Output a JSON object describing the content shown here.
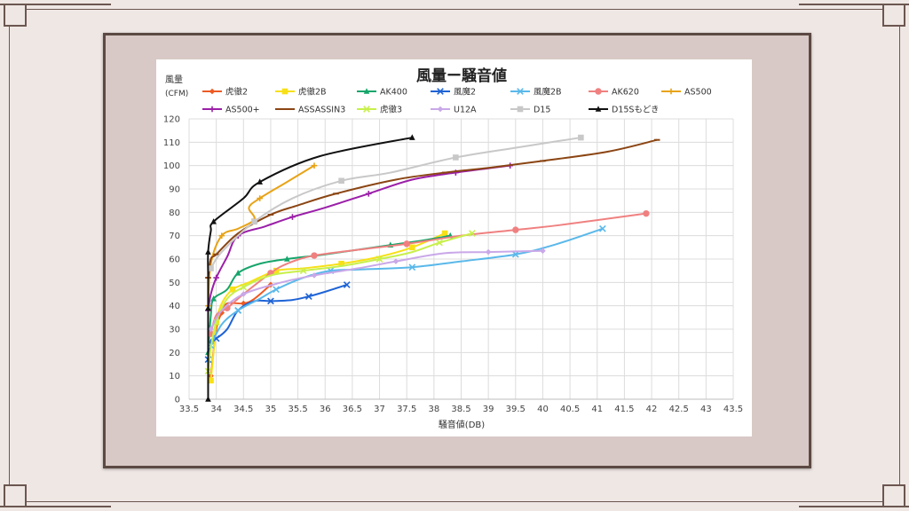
{
  "chart_data": {
    "type": "line",
    "title": "風量ー騒音値",
    "ylabel_line1": "風量",
    "ylabel_line2": "(CFM)",
    "xlabel": "騒音値(DB)",
    "xlim": [
      33.5,
      43.5
    ],
    "ylim": [
      0,
      120
    ],
    "x_ticks": [
      "33.5",
      "34",
      "34.5",
      "35",
      "35.5",
      "36",
      "36.5",
      "37",
      "37.5",
      "38",
      "38.5",
      "39",
      "39.5",
      "40",
      "40.5",
      "41",
      "41.5",
      "42",
      "42.5",
      "43",
      "43.5"
    ],
    "y_ticks": [
      "0",
      "10",
      "20",
      "30",
      "40",
      "50",
      "60",
      "70",
      "80",
      "90",
      "100",
      "110",
      "120"
    ],
    "grid": true,
    "legend_position": "top",
    "series": [
      {
        "name": "虎徹2",
        "color": "#ee5a24",
        "marker": "diamond",
        "points": [
          [
            33.9,
            10
          ],
          [
            34.0,
            30
          ],
          [
            34.1,
            37
          ],
          [
            34.2,
            41
          ],
          [
            34.5,
            41
          ],
          [
            34.7,
            43
          ],
          [
            35.0,
            49
          ]
        ]
      },
      {
        "name": "虎徹2B",
        "color": "#f7e017",
        "marker": "square",
        "points": [
          [
            33.9,
            8
          ],
          [
            33.95,
            20
          ],
          [
            34.0,
            33
          ],
          [
            34.1,
            41
          ],
          [
            34.3,
            47
          ],
          [
            34.6,
            50
          ],
          [
            35.1,
            55
          ],
          [
            35.6,
            56
          ],
          [
            36.3,
            58
          ],
          [
            37.0,
            61
          ],
          [
            37.6,
            65
          ],
          [
            38.2,
            71
          ]
        ]
      },
      {
        "name": "AK400",
        "color": "#16a56b",
        "marker": "triangle",
        "points": [
          [
            33.85,
            20
          ],
          [
            33.9,
            36
          ],
          [
            33.95,
            43
          ],
          [
            34.2,
            47
          ],
          [
            34.4,
            54
          ],
          [
            34.8,
            58
          ],
          [
            35.3,
            60
          ],
          [
            36.0,
            62
          ],
          [
            37.2,
            66
          ],
          [
            37.8,
            68
          ],
          [
            38.3,
            70
          ]
        ]
      },
      {
        "name": "風魔2",
        "color": "#1e63d6",
        "marker": "x",
        "points": [
          [
            33.85,
            17
          ],
          [
            33.9,
            25
          ],
          [
            34.0,
            26
          ],
          [
            34.2,
            30
          ],
          [
            34.4,
            38
          ],
          [
            34.7,
            42
          ],
          [
            35.0,
            42
          ],
          [
            35.4,
            42.5
          ],
          [
            35.7,
            44
          ],
          [
            36.0,
            46
          ],
          [
            36.4,
            49
          ]
        ]
      },
      {
        "name": "風魔2B",
        "color": "#5ab8ea",
        "marker": "x",
        "points": [
          [
            33.9,
            23
          ],
          [
            34.1,
            32
          ],
          [
            34.4,
            38
          ],
          [
            34.8,
            43
          ],
          [
            35.1,
            47
          ],
          [
            35.6,
            52
          ],
          [
            36.1,
            55
          ],
          [
            36.6,
            55.5
          ],
          [
            37.6,
            56.5
          ],
          [
            38.5,
            59
          ],
          [
            39.5,
            62
          ],
          [
            40.2,
            66
          ],
          [
            41.1,
            73
          ]
        ]
      },
      {
        "name": "AK620",
        "color": "#f08080",
        "marker": "circle",
        "points": [
          [
            33.9,
            28
          ],
          [
            34.0,
            36
          ],
          [
            34.2,
            39
          ],
          [
            34.5,
            45
          ],
          [
            35.0,
            54
          ],
          [
            35.3,
            58
          ],
          [
            35.8,
            61.5
          ],
          [
            36.8,
            64.5
          ],
          [
            37.5,
            66.5
          ],
          [
            38.5,
            70
          ],
          [
            39.5,
            72.5
          ],
          [
            40.3,
            74.5
          ],
          [
            41.9,
            79.5
          ]
        ]
      },
      {
        "name": "AS500",
        "color": "#e8a316",
        "marker": "plus",
        "points": [
          [
            33.85,
            40
          ],
          [
            33.9,
            58
          ],
          [
            34.1,
            70
          ],
          [
            34.4,
            73
          ],
          [
            34.7,
            77
          ],
          [
            34.6,
            82
          ],
          [
            34.8,
            86
          ],
          [
            35.3,
            93
          ],
          [
            35.8,
            100
          ]
        ]
      },
      {
        "name": "AS500+",
        "color": "#9b1fa8",
        "marker": "plus",
        "points": [
          [
            33.85,
            38
          ],
          [
            33.9,
            45
          ],
          [
            34.0,
            52
          ],
          [
            34.2,
            61
          ],
          [
            34.4,
            70
          ],
          [
            34.9,
            74
          ],
          [
            35.4,
            78
          ],
          [
            36.0,
            82
          ],
          [
            36.8,
            88
          ],
          [
            37.6,
            94
          ],
          [
            38.4,
            97
          ],
          [
            39.4,
            100
          ]
        ]
      },
      {
        "name": "ASSASSIN3",
        "color": "#8b4513",
        "marker": "dash",
        "points": [
          [
            33.85,
            52
          ],
          [
            33.9,
            60
          ],
          [
            34.0,
            62
          ],
          [
            34.4,
            71
          ],
          [
            35.0,
            79
          ],
          [
            35.5,
            83
          ],
          [
            36.2,
            88
          ],
          [
            37.3,
            94
          ],
          [
            38.2,
            97
          ],
          [
            39.0,
            99
          ],
          [
            40.0,
            102
          ],
          [
            41.2,
            106
          ],
          [
            42.1,
            111
          ]
        ]
      },
      {
        "name": "虎徹3",
        "color": "#c8f04a",
        "marker": "x",
        "points": [
          [
            33.85,
            12
          ],
          [
            33.9,
            22
          ],
          [
            34.0,
            33
          ],
          [
            34.2,
            43
          ],
          [
            34.5,
            48
          ],
          [
            35.0,
            53
          ],
          [
            35.6,
            55
          ],
          [
            36.3,
            57
          ],
          [
            37.0,
            60
          ],
          [
            37.6,
            63
          ],
          [
            38.1,
            67
          ],
          [
            38.7,
            71
          ]
        ]
      },
      {
        "name": "U12A",
        "color": "#c9a8e8",
        "marker": "diamond",
        "points": [
          [
            33.9,
            30
          ],
          [
            34.1,
            38
          ],
          [
            34.5,
            45
          ],
          [
            35.2,
            50
          ],
          [
            35.8,
            53
          ],
          [
            36.6,
            56
          ],
          [
            37.3,
            59
          ],
          [
            38.2,
            62.5
          ],
          [
            39.0,
            63
          ],
          [
            40.0,
            63.5
          ]
        ]
      },
      {
        "name": "D15",
        "color": "#c8c8c8",
        "marker": "square",
        "points": [
          [
            33.9,
            56
          ],
          [
            34.1,
            63
          ],
          [
            34.7,
            76
          ],
          [
            35.4,
            86
          ],
          [
            36.3,
            93.5
          ],
          [
            37.2,
            97
          ],
          [
            38.4,
            103.5
          ],
          [
            39.6,
            108
          ],
          [
            40.7,
            112
          ]
        ]
      },
      {
        "name": "D15Sもどき",
        "color": "#111111",
        "marker": "triangle",
        "points": [
          [
            33.85,
            0
          ],
          [
            33.85,
            22
          ],
          [
            33.85,
            39
          ],
          [
            33.85,
            52
          ],
          [
            33.85,
            63
          ],
          [
            33.9,
            72
          ],
          [
            33.95,
            76
          ],
          [
            34.5,
            86
          ],
          [
            34.8,
            93
          ],
          [
            35.9,
            104
          ],
          [
            37.6,
            112
          ]
        ]
      }
    ]
  }
}
